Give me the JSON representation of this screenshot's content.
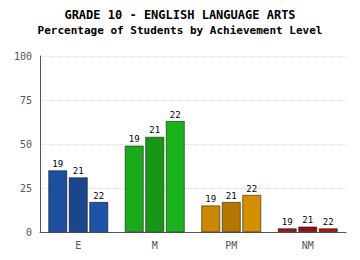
{
  "chart_data": {
    "type": "bar",
    "title": "GRADE 10 - ENGLISH LANGUAGE ARTS",
    "subtitle": "Percentage of Students by Achievement Level",
    "categories": [
      "E",
      "M",
      "PM",
      "NM"
    ],
    "series": [
      {
        "name": "19",
        "values": [
          35,
          49,
          15,
          2
        ],
        "colors": [
          "#1c4fa0",
          "#1aaa1a",
          "#cc8800",
          "#aa1111"
        ]
      },
      {
        "name": "21",
        "values": [
          31,
          54,
          17,
          3
        ],
        "colors": [
          "#19468d",
          "#179617",
          "#b47800",
          "#960f0f"
        ]
      },
      {
        "name": "22",
        "values": [
          17,
          63,
          21,
          2
        ],
        "colors": [
          "#1d53a8",
          "#1bb31b",
          "#d68f00",
          "#b31212"
        ]
      }
    ],
    "ylim": [
      0,
      100
    ],
    "yticks": [
      0,
      25,
      50,
      75,
      100
    ],
    "grid": true
  }
}
